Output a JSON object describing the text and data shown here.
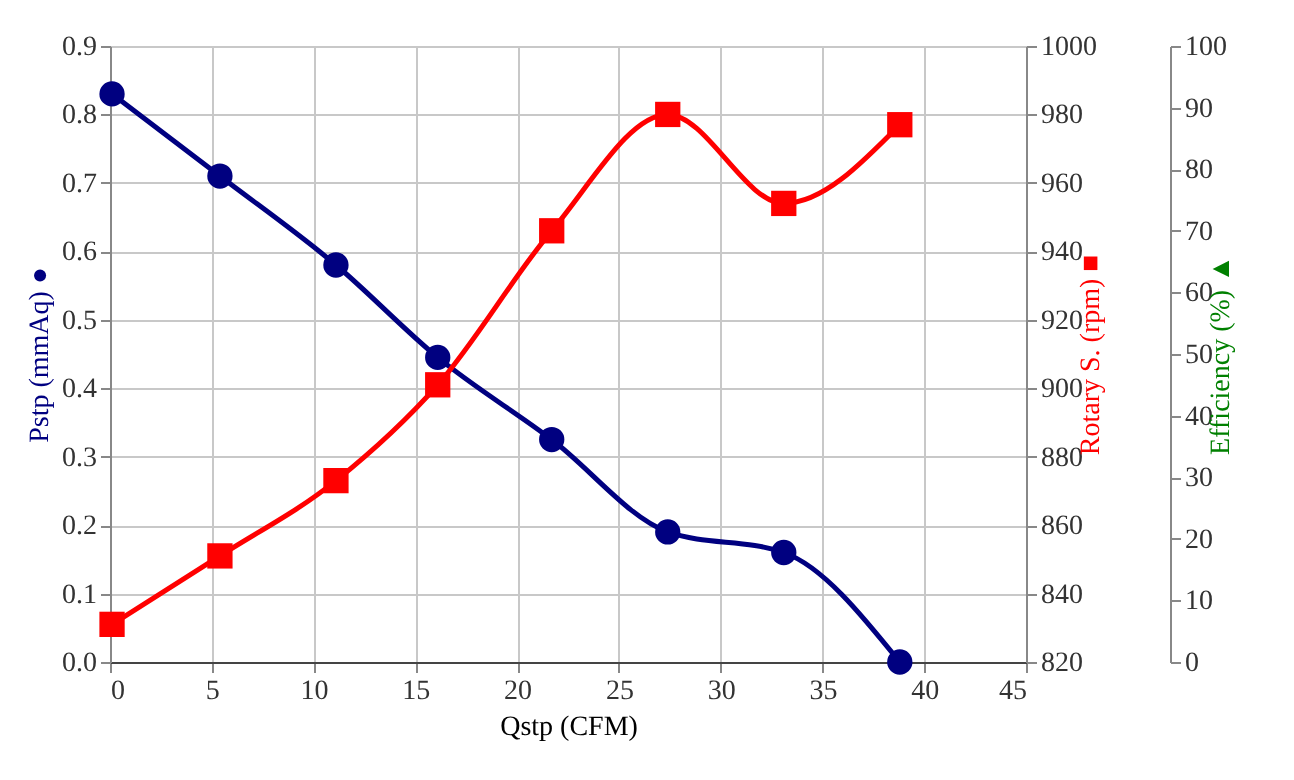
{
  "chart_data": {
    "type": "line",
    "xlabel": "Qstp (CFM)",
    "ylabel": "Pstp (mmAq)  ●",
    "y2label": "Rotary S. (rpm)  ■",
    "y3label": "Efficiency (%)  ▲",
    "x": [
      0.1,
      5.4,
      11.1,
      16.1,
      21.7,
      27.4,
      33.1,
      38.8
    ],
    "series": [
      {
        "color": "#000080",
        "marker": "circle",
        "values": [
          0.83,
          0.71,
          0.58,
          0.445,
          0.325,
          0.19,
          0.16,
          0.0
        ]
      },
      {
        "color": "#ff0000",
        "marker": "square",
        "axis": "y2",
        "values": [
          831,
          851,
          873,
          901,
          946,
          980,
          954,
          977
        ]
      },
      {
        "color": "#008000",
        "marker": "triangle",
        "axis": "y3",
        "values": [
          null,
          null,
          null,
          null,
          null,
          null,
          null,
          null
        ]
      }
    ],
    "xlim": [
      0,
      45
    ],
    "xticks": [
      0,
      5,
      10,
      15,
      20,
      25,
      30,
      35,
      40,
      45
    ],
    "ylim": [
      0,
      0.9
    ],
    "yticks": [
      {
        "value": 0,
        "label": "0.0"
      },
      0.1,
      0.2,
      0.3,
      0.4,
      0.5,
      0.6,
      0.7,
      0.8,
      0.9
    ],
    "y2lim": [
      820,
      1000
    ],
    "y2ticks": [
      820,
      840,
      860,
      880,
      900,
      920,
      940,
      960,
      980,
      1000
    ],
    "y3lim": [
      0,
      100
    ],
    "y3ticks": [
      0,
      10,
      20,
      30,
      40,
      50,
      60,
      70,
      80,
      90,
      100
    ],
    "grid": true,
    "line_style": "solid"
  }
}
